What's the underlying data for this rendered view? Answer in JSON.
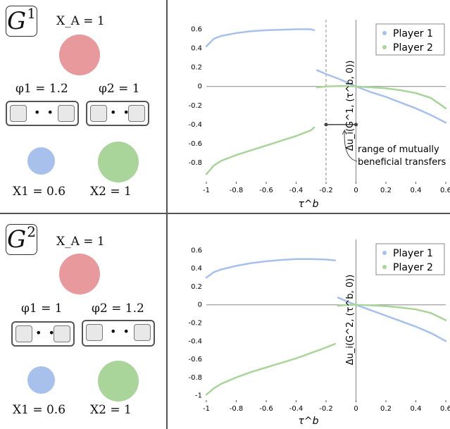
{
  "panels": [
    {
      "game_label": "G",
      "game_sup": "1",
      "xa_label": "X_A = 1",
      "phi1_label": "φ1 = 1.2",
      "phi2_label": "φ2 = 1",
      "x1_label": "X1 = 0.6",
      "x2_label": "X2 = 1",
      "phi1_wide": true
    },
    {
      "game_label": "G",
      "game_sup": "2",
      "xa_label": "X_A = 1",
      "phi1_label": "φ1 = 1",
      "phi2_label": "φ2 = 1.2",
      "x1_label": "X1 = 0.6",
      "x2_label": "X2 = 1",
      "phi1_wide": false
    }
  ],
  "colors": {
    "player_a": "#e8999c",
    "player_1": "#a7c1ec",
    "player_2": "#a9d49a",
    "axis": "#555555"
  },
  "annotation": {
    "line1": "range of mutually",
    "line2": "beneficial transfers"
  },
  "chart_data": [
    {
      "type": "line",
      "ylabel": "Δu_i(G^1, (τ^b, 0))",
      "xlabel": "τ^b",
      "xlim": [
        -1,
        0.6
      ],
      "ylim": [
        -1.0,
        0.7
      ],
      "xticks": [
        -1,
        -0.8,
        -0.6,
        -0.4,
        -0.2,
        0,
        0.2,
        0.4,
        0.6
      ],
      "xtick_labels": [
        "-1",
        "-0.8",
        "-0.6",
        "-0.4",
        "-0.2",
        "0",
        "0.2",
        "0.4",
        "0.6"
      ],
      "yticks": [
        0.6,
        0.4,
        0.2,
        0,
        -0.2,
        -0.4,
        -0.6,
        -0.8
      ],
      "ytick_labels": [
        "0.6",
        "0.4",
        "0.2",
        "0",
        "-0.2",
        "-0.4",
        "-0.6",
        "-0.8"
      ],
      "legend": {
        "position": "top-right",
        "entries": [
          "Player 1",
          "Player 2"
        ]
      },
      "vline_dashed": -0.2,
      "range_bracket": {
        "x0": -0.2,
        "x1": 0,
        "y": -0.4
      },
      "series": [
        {
          "name": "Player 1",
          "segments": [
            {
              "x": [
                -1,
                -0.95,
                -0.9,
                -0.8,
                -0.7,
                -0.6,
                -0.5,
                -0.4,
                -0.3,
                -0.28
              ],
              "y": [
                0.42,
                0.5,
                0.53,
                0.56,
                0.58,
                0.59,
                0.595,
                0.6,
                0.6,
                0.59
              ]
            },
            {
              "x": [
                -0.26,
                -0.2,
                -0.1,
                0,
                0.1,
                0.2,
                0.3,
                0.4,
                0.5,
                0.6
              ],
              "y": [
                0.17,
                0.13,
                0.07,
                0,
                -0.06,
                -0.11,
                -0.17,
                -0.23,
                -0.3,
                -0.38
              ]
            }
          ]
        },
        {
          "name": "Player 2",
          "segments": [
            {
              "x": [
                -1,
                -0.95,
                -0.9,
                -0.8,
                -0.7,
                -0.6,
                -0.5,
                -0.4,
                -0.3,
                -0.28
              ],
              "y": [
                -0.92,
                -0.83,
                -0.78,
                -0.72,
                -0.67,
                -0.62,
                -0.57,
                -0.52,
                -0.46,
                -0.43
              ]
            },
            {
              "x": [
                -0.26,
                -0.2,
                -0.1,
                0,
                0.1,
                0.2,
                0.3,
                0.4,
                0.5,
                0.6
              ],
              "y": [
                -0.01,
                0,
                0.005,
                0,
                -0.01,
                -0.02,
                -0.04,
                -0.07,
                -0.12,
                -0.23
              ]
            }
          ]
        }
      ]
    },
    {
      "type": "line",
      "ylabel": "Δu_i(G^2, (τ^b, 0))",
      "xlabel": "τ^b",
      "xlim": [
        -1,
        0.6
      ],
      "ylim": [
        -1.05,
        0.72
      ],
      "xticks": [
        -1,
        -0.8,
        -0.6,
        -0.4,
        -0.2,
        0,
        0.2,
        0.4,
        0.6
      ],
      "xtick_labels": [
        "-1",
        "-0.8",
        "-0.6",
        "-0.4",
        "-0.2",
        "0",
        "0.2",
        "0.4",
        "0.6"
      ],
      "yticks": [
        0.6,
        0.4,
        0.2,
        0,
        -0.2,
        -0.4,
        -0.6,
        -0.8,
        -1
      ],
      "ytick_labels": [
        "0.6",
        "0.4",
        "0.2",
        "0",
        "-0.2",
        "-0.4",
        "-0.6",
        "-0.8",
        "-1"
      ],
      "legend": {
        "position": "top-right",
        "entries": [
          "Player 1",
          "Player 2"
        ]
      },
      "series": [
        {
          "name": "Player 1",
          "segments": [
            {
              "x": [
                -1,
                -0.95,
                -0.9,
                -0.8,
                -0.7,
                -0.6,
                -0.5,
                -0.4,
                -0.3,
                -0.2,
                -0.14
              ],
              "y": [
                0.3,
                0.36,
                0.39,
                0.43,
                0.46,
                0.48,
                0.495,
                0.505,
                0.505,
                0.5,
                0.49
              ]
            },
            {
              "x": [
                -0.12,
                -0.05,
                0,
                0.1,
                0.2,
                0.3,
                0.4,
                0.5,
                0.6
              ],
              "y": [
                0.08,
                0.03,
                0,
                -0.06,
                -0.12,
                -0.18,
                -0.24,
                -0.31,
                -0.4
              ]
            }
          ]
        },
        {
          "name": "Player 2",
          "segments": [
            {
              "x": [
                -1,
                -0.95,
                -0.9,
                -0.8,
                -0.7,
                -0.6,
                -0.5,
                -0.4,
                -0.3,
                -0.2,
                -0.14
              ],
              "y": [
                -0.99,
                -0.92,
                -0.87,
                -0.8,
                -0.74,
                -0.69,
                -0.64,
                -0.59,
                -0.53,
                -0.47,
                -0.43
              ]
            },
            {
              "x": [
                -0.12,
                -0.05,
                0,
                0.1,
                0.2,
                0.3,
                0.4,
                0.5,
                0.6
              ],
              "y": [
                -0.01,
                0,
                0,
                -0.005,
                -0.015,
                -0.03,
                -0.05,
                -0.09,
                -0.17
              ]
            }
          ]
        }
      ]
    }
  ]
}
